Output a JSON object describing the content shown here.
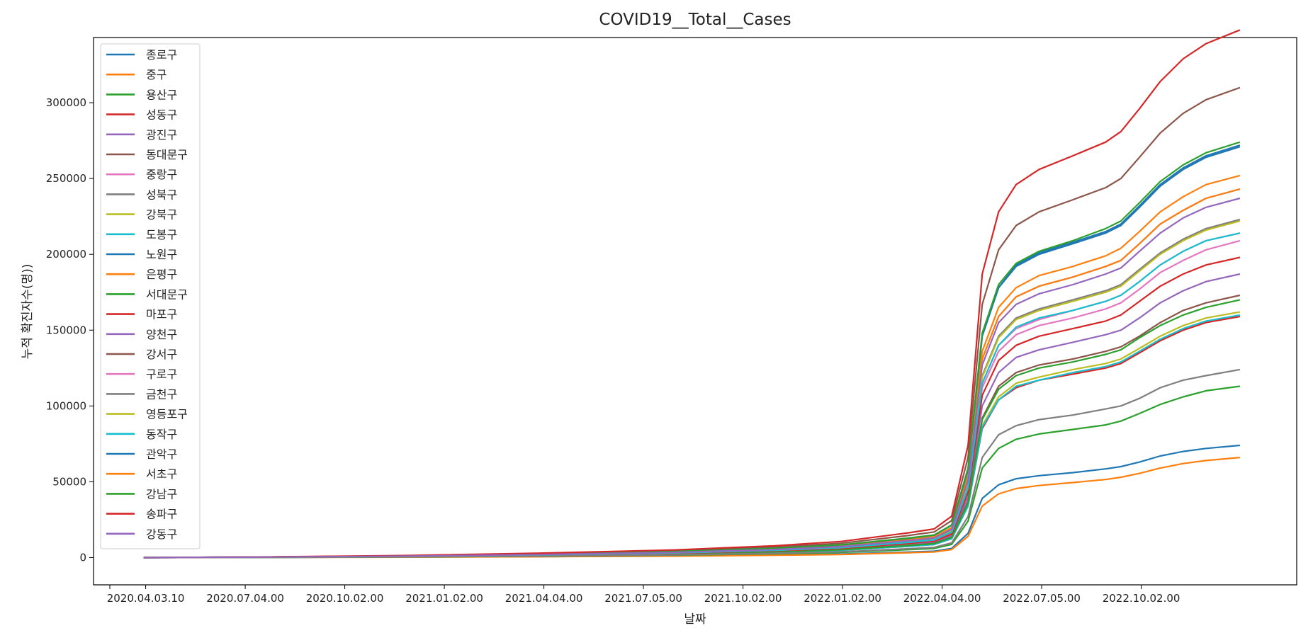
{
  "chart_data": {
    "type": "line",
    "title": "COVID19__Total__Cases",
    "xlabel": "날짜",
    "ylabel": "누적 확진자수(명))",
    "x": [
      "2020-02-01",
      "2020-06-01",
      "2020-10-01",
      "2021-02-01",
      "2021-06-01",
      "2021-09-01",
      "2021-11-01",
      "2022-01-01",
      "2022-01-25",
      "2022-02-10",
      "2022-02-25",
      "2022-03-10",
      "2022-03-25",
      "2022-04-10",
      "2022-05-01",
      "2022-06-01",
      "2022-07-01",
      "2022-07-15",
      "2022-08-01",
      "2022-08-20",
      "2022-09-10",
      "2022-10-01",
      "2022-11-01"
    ],
    "x_ticks": [
      "2020.04.03.10",
      "2020.07.04.00",
      "2020.10.02.00",
      "2021.01.02.00",
      "2021.04.04.00",
      "2021.07.05.00",
      "2021.10.02.00",
      "2022.01.02.00",
      "2022.04.04.00",
      "2022.07.05.00",
      "2022.10.02.00"
    ],
    "y_ticks": [
      "0",
      "50000",
      "100000",
      "150000",
      "200000",
      "250000",
      "300000"
    ],
    "ylim": [
      -18000,
      343000
    ],
    "grid": false,
    "legend_position": "upper-left",
    "series": [
      {
        "name": "종로구",
        "color": "#1f77b4",
        "values": [
          0,
          110,
          300,
          650,
          1100,
          1700,
          2300,
          3600,
          4200,
          6000,
          16000,
          39000,
          48000,
          52000,
          54000,
          56000,
          58500,
          60000,
          63000,
          67000,
          70000,
          72000,
          74000
        ]
      },
      {
        "name": "중구",
        "color": "#ff7f0e",
        "values": [
          0,
          100,
          270,
          580,
          980,
          1500,
          2050,
          3200,
          3700,
          5300,
          14000,
          34000,
          42000,
          45500,
          47500,
          49500,
          51500,
          53000,
          55500,
          59000,
          62000,
          64000,
          66000
        ]
      },
      {
        "name": "용산구",
        "color": "#2ca02c",
        "values": [
          0,
          160,
          440,
          950,
          1600,
          2480,
          3380,
          5200,
          6000,
          8700,
          24000,
          59000,
          72000,
          78000,
          81500,
          84500,
          87500,
          90000,
          95000,
          101000,
          106000,
          110000,
          113000
        ]
      },
      {
        "name": "성동구",
        "color": "#d62728",
        "values": [
          0,
          230,
          630,
          1350,
          2280,
          3540,
          4830,
          7400,
          8600,
          12400,
          34000,
          85000,
          104000,
          112000,
          117000,
          121000,
          125000,
          128000,
          135000,
          143000,
          150000,
          155000,
          159000
        ]
      },
      {
        "name": "광진구",
        "color": "#9467bd",
        "values": [
          0,
          270,
          740,
          1590,
          2690,
          4170,
          5690,
          8700,
          10100,
          14600,
          40000,
          100000,
          122000,
          132000,
          137000,
          142000,
          147000,
          150000,
          158000,
          168000,
          176000,
          182000,
          187000
        ]
      },
      {
        "name": "동대문구",
        "color": "#8c564b",
        "values": [
          0,
          250,
          680,
          1470,
          2480,
          3850,
          5250,
          8000,
          9300,
          13500,
          37000,
          92000,
          113000,
          122000,
          127000,
          131000,
          136000,
          139000,
          146000,
          155000,
          163000,
          168000,
          173000
        ]
      },
      {
        "name": "중랑구",
        "color": "#e377c2",
        "values": [
          0,
          300,
          820,
          1780,
          3000,
          4660,
          6360,
          9700,
          11300,
          16300,
          45000,
          112000,
          136000,
          147000,
          153000,
          158000,
          164000,
          168000,
          177000,
          188000,
          196000,
          203000,
          209000
        ]
      },
      {
        "name": "성북구",
        "color": "#7f7f7f",
        "values": [
          0,
          320,
          880,
          1910,
          3220,
          5000,
          6820,
          10400,
          12100,
          17500,
          48000,
          120000,
          146000,
          158000,
          164000,
          170000,
          176000,
          180000,
          190000,
          201000,
          210000,
          217000,
          223000
        ]
      },
      {
        "name": "강북구",
        "color": "#bcbd22",
        "values": [
          0,
          230,
          640,
          1380,
          2330,
          3620,
          4940,
          7600,
          8800,
          12700,
          35000,
          87000,
          106000,
          115000,
          119000,
          124000,
          128000,
          131000,
          138000,
          146000,
          153000,
          158000,
          162000
        ]
      },
      {
        "name": "도봉구",
        "color": "#17becf",
        "values": [
          0,
          230,
          630,
          1360,
          2290,
          3560,
          4860,
          7400,
          8600,
          12500,
          34000,
          86000,
          104000,
          113000,
          117000,
          122000,
          126000,
          129000,
          136000,
          144000,
          151000,
          156000,
          160000
        ]
      },
      {
        "name": "노원구",
        "color": "#1f77b4",
        "values": [
          0,
          390,
          1080,
          2330,
          3920,
          6080,
          8300,
          12700,
          14800,
          21300,
          58000,
          146000,
          178000,
          192000,
          200000,
          207000,
          214000,
          219000,
          231000,
          245000,
          256000,
          264000,
          271000
        ]
      },
      {
        "name": "은평구",
        "color": "#ff7f0e",
        "values": [
          0,
          360,
          1000,
          2170,
          3640,
          5660,
          7720,
          11800,
          13700,
          19800,
          54000,
          136000,
          165000,
          178000,
          186000,
          192000,
          199000,
          204000,
          215000,
          228000,
          238000,
          246000,
          252000
        ]
      },
      {
        "name": "서대문구",
        "color": "#2ca02c",
        "values": [
          0,
          240,
          670,
          1450,
          2440,
          3800,
          5180,
          7900,
          9200,
          13300,
          36000,
          91000,
          111000,
          120000,
          125000,
          129000,
          134000,
          137000,
          145000,
          153000,
          160000,
          165000,
          170000
        ]
      },
      {
        "name": "마포구",
        "color": "#d62728",
        "values": [
          0,
          290,
          790,
          1700,
          2860,
          4450,
          6070,
          9300,
          10800,
          15600,
          43000,
          107000,
          130000,
          140000,
          146000,
          151000,
          156000,
          160000,
          169000,
          179000,
          187000,
          193000,
          198000
        ]
      },
      {
        "name": "양천구",
        "color": "#9467bd",
        "values": [
          0,
          350,
          970,
          2090,
          3510,
          5450,
          7440,
          11400,
          13200,
          19100,
          52000,
          131000,
          159000,
          172000,
          179000,
          185000,
          192000,
          196000,
          207000,
          220000,
          229000,
          237000,
          243000
        ]
      },
      {
        "name": "강서구",
        "color": "#8c564b",
        "values": [
          0,
          450,
          1240,
          2660,
          4470,
          6950,
          9480,
          14500,
          16900,
          24400,
          66000,
          167000,
          203000,
          219000,
          228000,
          236000,
          244000,
          250000,
          264000,
          280000,
          293000,
          302000,
          310000
        ]
      },
      {
        "name": "구로구",
        "color": "#e377c2",
        "values": [
          0,
          310,
          850,
          1840,
          3090,
          4800,
          6550,
          10000,
          11600,
          16800,
          46000,
          115000,
          140000,
          151000,
          157000,
          163000,
          169000,
          173000,
          182000,
          193000,
          202000,
          209000,
          214000
        ]
      },
      {
        "name": "금천구",
        "color": "#7f7f7f",
        "values": [
          0,
          180,
          490,
          1060,
          1790,
          2780,
          3790,
          5800,
          6700,
          9700,
          27000,
          66000,
          81000,
          87000,
          91000,
          94000,
          98000,
          100000,
          105000,
          112000,
          117000,
          120000,
          124000
        ]
      },
      {
        "name": "영등포구",
        "color": "#bcbd22",
        "values": [
          0,
          320,
          880,
          1900,
          3200,
          4970,
          6780,
          10400,
          12100,
          17400,
          48000,
          119000,
          145000,
          157000,
          163000,
          169000,
          175000,
          179000,
          189000,
          200000,
          209000,
          216000,
          222000
        ]
      },
      {
        "name": "동작구",
        "color": "#17becf",
        "values": [
          0,
          310,
          850,
          1840,
          3100,
          4810,
          6560,
          10000,
          11700,
          16900,
          46000,
          115000,
          140000,
          152000,
          158000,
          163000,
          169000,
          173000,
          182000,
          193000,
          202000,
          209000,
          214000
        ]
      },
      {
        "name": "관악구",
        "color": "#1f77b4",
        "values": [
          0,
          390,
          1080,
          2340,
          3930,
          6100,
          8330,
          12700,
          14800,
          21400,
          58000,
          147000,
          178000,
          193000,
          201000,
          208000,
          215000,
          220000,
          232000,
          246000,
          257000,
          265000,
          272000
        ]
      },
      {
        "name": "서초구",
        "color": "#ff7f0e",
        "values": [
          0,
          350,
          970,
          2090,
          3510,
          5450,
          7440,
          11400,
          13200,
          19100,
          52000,
          131000,
          159000,
          172000,
          179000,
          185000,
          192000,
          196000,
          207000,
          220000,
          229000,
          237000,
          243000
        ]
      },
      {
        "name": "강남구",
        "color": "#2ca02c",
        "values": [
          0,
          390,
          1090,
          2350,
          3950,
          6140,
          8380,
          12800,
          14900,
          21500,
          59000,
          148000,
          180000,
          194000,
          202000,
          209000,
          217000,
          222000,
          234000,
          248000,
          259000,
          267000,
          274000
        ]
      },
      {
        "name": "송파구",
        "color": "#d62728",
        "values": [
          0,
          500,
          1380,
          2980,
          5010,
          7790,
          10630,
          16300,
          18900,
          27300,
          74000,
          187000,
          228000,
          246000,
          256000,
          265000,
          274000,
          281000,
          296000,
          314000,
          329000,
          339000,
          348000
        ]
      },
      {
        "name": "강동구",
        "color": "#9467bd",
        "values": [
          0,
          340,
          940,
          2030,
          3420,
          5310,
          7250,
          11100,
          12900,
          18600,
          51000,
          127000,
          155000,
          167000,
          174000,
          180000,
          187000,
          191000,
          202000,
          214000,
          224000,
          231000,
          237000
        ]
      }
    ]
  }
}
